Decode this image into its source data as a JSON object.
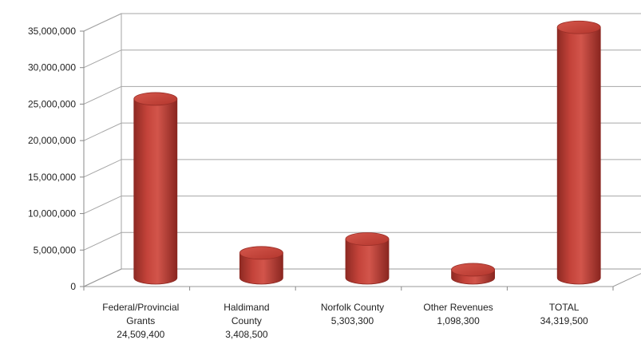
{
  "chart_data": {
    "type": "bar",
    "style": "3d-cylinder",
    "title": "",
    "xlabel": "",
    "ylabel": "",
    "ylim": [
      0,
      35000000
    ],
    "yticks": [
      0,
      5000000,
      10000000,
      15000000,
      20000000,
      25000000,
      30000000,
      35000000
    ],
    "ytick_labels": [
      "0",
      "5,000,000",
      "10,000,000",
      "15,000,000",
      "20,000,000",
      "25,000,000",
      "30,000,000",
      "35,000,000"
    ],
    "grid": true,
    "legend": "none",
    "bar_color": "#c0392f",
    "categories": [
      {
        "line1": "Federal/Provincial",
        "line2": "Grants",
        "line3": "24,509,400"
      },
      {
        "line1": "Haldimand",
        "line2": "County",
        "line3": "3,408,500"
      },
      {
        "line1": "Norfolk County",
        "line2": "5,303,300",
        "line3": ""
      },
      {
        "line1": "Other Revenues",
        "line2": "1,098,300",
        "line3": ""
      },
      {
        "line1": "TOTAL",
        "line2": "34,319,500",
        "line3": ""
      }
    ],
    "values": [
      24509400,
      3408500,
      5303300,
      1098300,
      34319500
    ]
  }
}
